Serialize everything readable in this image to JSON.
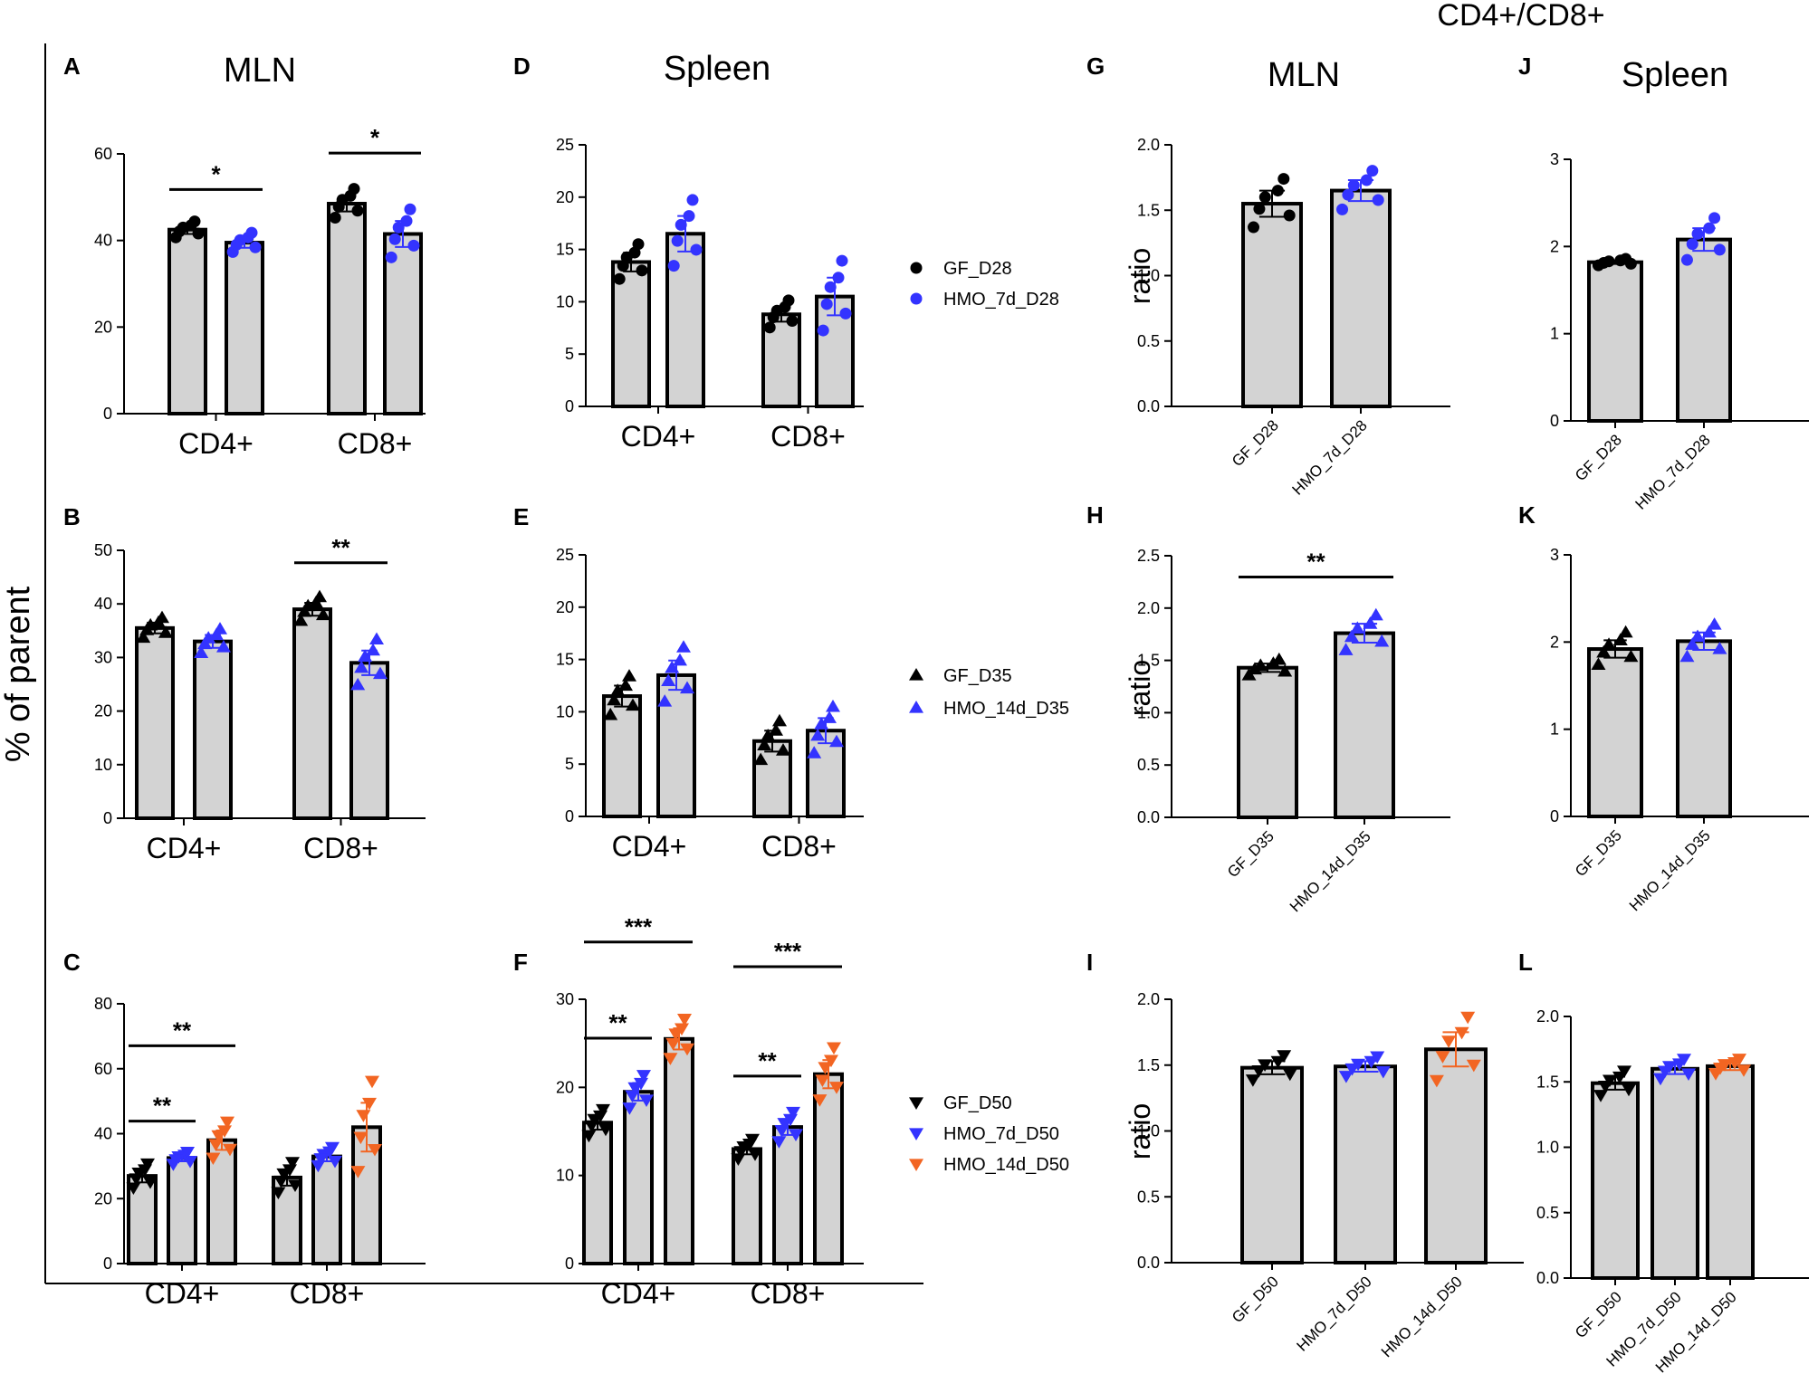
{
  "figure": {
    "y_label_left": "% of parent",
    "header_right": "CD4+/CD8+"
  },
  "colors": {
    "GF": "#000000",
    "HMO_7d": "#3333ff",
    "HMO_14d": "#f26522",
    "bar_fill": "#d3d3d3",
    "axis": "#000000"
  },
  "legends": [
    {
      "items": [
        {
          "label": "GF_D28",
          "marker": "circle",
          "color": "#000000"
        },
        {
          "label": "HMO_7d_D28",
          "marker": "circle",
          "color": "#3333ff"
        }
      ]
    },
    {
      "items": [
        {
          "label": "GF_D35",
          "marker": "triangle-up",
          "color": "#000000"
        },
        {
          "label": "HMO_14d_D35",
          "marker": "triangle-up",
          "color": "#3333ff"
        }
      ]
    },
    {
      "items": [
        {
          "label": "GF_D50",
          "marker": "triangle-down",
          "color": "#000000"
        },
        {
          "label": "HMO_7d_D50",
          "marker": "triangle-down",
          "color": "#3333ff"
        },
        {
          "label": "HMO_14d_D50",
          "marker": "triangle-down",
          "color": "#f26522"
        }
      ]
    }
  ],
  "chart_data": [
    {
      "panel": "A",
      "title": "MLN",
      "type": "bar",
      "ylim": [
        0,
        60
      ],
      "yticks": [
        "0",
        "20",
        "40",
        "60"
      ],
      "categories": [
        "CD4+",
        "CD8+"
      ],
      "marker": "circle",
      "series": [
        {
          "name": "GF_D28",
          "values": [
            42.5,
            48.5
          ],
          "sem": [
            1.0,
            1.8
          ]
        },
        {
          "name": "HMO_7d_D28",
          "values": [
            39.5,
            41.5
          ],
          "sem": [
            1.2,
            3.0
          ]
        }
      ],
      "significance": [
        {
          "label": "*",
          "category": "CD4+",
          "from": 0,
          "to": 1
        },
        {
          "label": "*",
          "category": "CD8+",
          "from": 0,
          "to": 1
        }
      ]
    },
    {
      "panel": "B",
      "type": "bar",
      "ylim": [
        0,
        50
      ],
      "yticks": [
        "0",
        "10",
        "20",
        "30",
        "40",
        "50"
      ],
      "categories": [
        "CD4+",
        "CD8+"
      ],
      "marker": "triangle-up",
      "series": [
        {
          "name": "GF_D35",
          "values": [
            35.5,
            39.0
          ],
          "sem": [
            1.0,
            1.2
          ]
        },
        {
          "name": "HMO_14d_D35",
          "values": [
            33.0,
            29.0
          ],
          "sem": [
            1.2,
            2.3
          ]
        }
      ],
      "significance": [
        {
          "label": "**",
          "category": "CD8+",
          "from": 0,
          "to": 1
        }
      ]
    },
    {
      "panel": "C",
      "type": "bar",
      "ylim": [
        0,
        80
      ],
      "yticks": [
        "0",
        "20",
        "40",
        "60",
        "80"
      ],
      "categories": [
        "CD4+",
        "CD8+"
      ],
      "marker": "triangle-down",
      "series": [
        {
          "name": "GF_D50",
          "values": [
            27.0,
            26.5
          ],
          "sem": [
            2.0,
            2.5
          ]
        },
        {
          "name": "HMO_7d_D50",
          "values": [
            32.5,
            33.0
          ],
          "sem": [
            1.0,
            1.5
          ]
        },
        {
          "name": "HMO_14d_D50",
          "values": [
            38.0,
            42.0
          ],
          "sem": [
            3.0,
            7.5
          ]
        }
      ],
      "significance": [
        {
          "label": "**",
          "category": "CD4+",
          "from": 0,
          "to": 1
        },
        {
          "label": "**",
          "category": "CD4+",
          "from": 0,
          "to": 2
        }
      ]
    },
    {
      "panel": "D",
      "title": "Spleen",
      "type": "bar",
      "ylim": [
        0,
        25
      ],
      "yticks": [
        "0",
        "5",
        "10",
        "15",
        "20",
        "25"
      ],
      "categories": [
        "CD4+",
        "CD8+"
      ],
      "marker": "circle",
      "series": [
        {
          "name": "GF_D28",
          "values": [
            13.8,
            8.8
          ],
          "sem": [
            0.9,
            0.7
          ]
        },
        {
          "name": "HMO_7d_D28",
          "values": [
            16.5,
            10.5
          ],
          "sem": [
            1.7,
            1.8
          ]
        }
      ],
      "significance": []
    },
    {
      "panel": "E",
      "type": "bar",
      "ylim": [
        0,
        25
      ],
      "yticks": [
        "0",
        "5",
        "10",
        "15",
        "20",
        "25"
      ],
      "categories": [
        "CD4+",
        "CD8+"
      ],
      "marker": "triangle-up",
      "series": [
        {
          "name": "GF_D35",
          "values": [
            11.5,
            7.2
          ],
          "sem": [
            1.0,
            1.0
          ]
        },
        {
          "name": "HMO_14d_D35",
          "values": [
            13.5,
            8.2
          ],
          "sem": [
            1.4,
            1.2
          ]
        }
      ],
      "significance": []
    },
    {
      "panel": "F",
      "type": "bar",
      "ylim": [
        0,
        30
      ],
      "yticks": [
        "0",
        "10",
        "20",
        "30"
      ],
      "categories": [
        "CD4+",
        "CD8+"
      ],
      "marker": "triangle-down",
      "series": [
        {
          "name": "GF_D50",
          "values": [
            16.0,
            13.0
          ],
          "sem": [
            0.8,
            0.6
          ]
        },
        {
          "name": "HMO_7d_D50",
          "values": [
            19.5,
            15.5
          ],
          "sem": [
            1.0,
            0.9
          ]
        },
        {
          "name": "HMO_14d_D50",
          "values": [
            25.5,
            21.5
          ],
          "sem": [
            1.2,
            1.6
          ]
        }
      ],
      "significance": [
        {
          "label": "**",
          "category": "CD4+",
          "from": 0,
          "to": 1
        },
        {
          "label": "***",
          "category": "CD4+",
          "from": 0,
          "to": 2
        },
        {
          "label": "**",
          "category": "CD8+",
          "from": 0,
          "to": 1
        },
        {
          "label": "***",
          "category": "CD8+",
          "from": 0,
          "to": 2
        }
      ]
    },
    {
      "panel": "G",
      "title": "MLN",
      "ylabel": "ratio",
      "type": "bar",
      "ylim": [
        0,
        2.0
      ],
      "yticks": [
        "0.0",
        "0.5",
        "1.0",
        "1.5",
        "2.0"
      ],
      "marker": "circle",
      "categories": [
        "GF_D28",
        "HMO_7d_D28"
      ],
      "values": [
        1.55,
        1.65
      ],
      "sem": [
        0.1,
        0.08
      ],
      "significance": []
    },
    {
      "panel": "H",
      "ylabel": "ratio",
      "type": "bar",
      "ylim": [
        0,
        2.5
      ],
      "yticks": [
        "0.0",
        "0.5",
        "1.0",
        "1.5",
        "2.0",
        "2.5"
      ],
      "marker": "triangle-up",
      "categories": [
        "GF_D35",
        "HMO_14d_D35"
      ],
      "values": [
        1.43,
        1.76
      ],
      "sem": [
        0.04,
        0.09
      ],
      "significance": [
        {
          "label": "**",
          "from": 0,
          "to": 1
        }
      ]
    },
    {
      "panel": "I",
      "ylabel": "ratio",
      "type": "bar",
      "ylim": [
        0,
        2.0
      ],
      "yticks": [
        "0.0",
        "0.5",
        "1.0",
        "1.5",
        "2.0"
      ],
      "marker": "triangle-down",
      "categories": [
        "GF_D50",
        "HMO_7d_D50",
        "HMO_14d_D50"
      ],
      "values": [
        1.48,
        1.49,
        1.62
      ],
      "sem": [
        0.05,
        0.04,
        0.13
      ],
      "significance": []
    },
    {
      "panel": "J",
      "title": "Spleen",
      "type": "bar",
      "ylim": [
        0,
        3
      ],
      "yticks": [
        "0",
        "1",
        "2",
        "3"
      ],
      "marker": "circle",
      "categories": [
        "GF_D28",
        "HMO_7d_D28"
      ],
      "values": [
        1.82,
        2.08
      ],
      "sem": [
        0.02,
        0.13
      ],
      "significance": []
    },
    {
      "panel": "K",
      "type": "bar",
      "ylim": [
        0,
        3
      ],
      "yticks": [
        "0",
        "1",
        "2",
        "3"
      ],
      "marker": "triangle-up",
      "categories": [
        "GF_D35",
        "HMO_14d_D35"
      ],
      "values": [
        1.92,
        2.01
      ],
      "sem": [
        0.1,
        0.1
      ],
      "significance": []
    },
    {
      "panel": "L",
      "type": "bar",
      "ylim": [
        0,
        2.0
      ],
      "yticks": [
        "0.0",
        "0.5",
        "1.0",
        "1.5",
        "2.0"
      ],
      "marker": "triangle-down",
      "categories": [
        "GF_D50",
        "HMO_7d_D50",
        "HMO_14d_D50"
      ],
      "values": [
        1.49,
        1.6,
        1.62
      ],
      "sem": [
        0.05,
        0.04,
        0.03
      ],
      "significance": []
    }
  ]
}
